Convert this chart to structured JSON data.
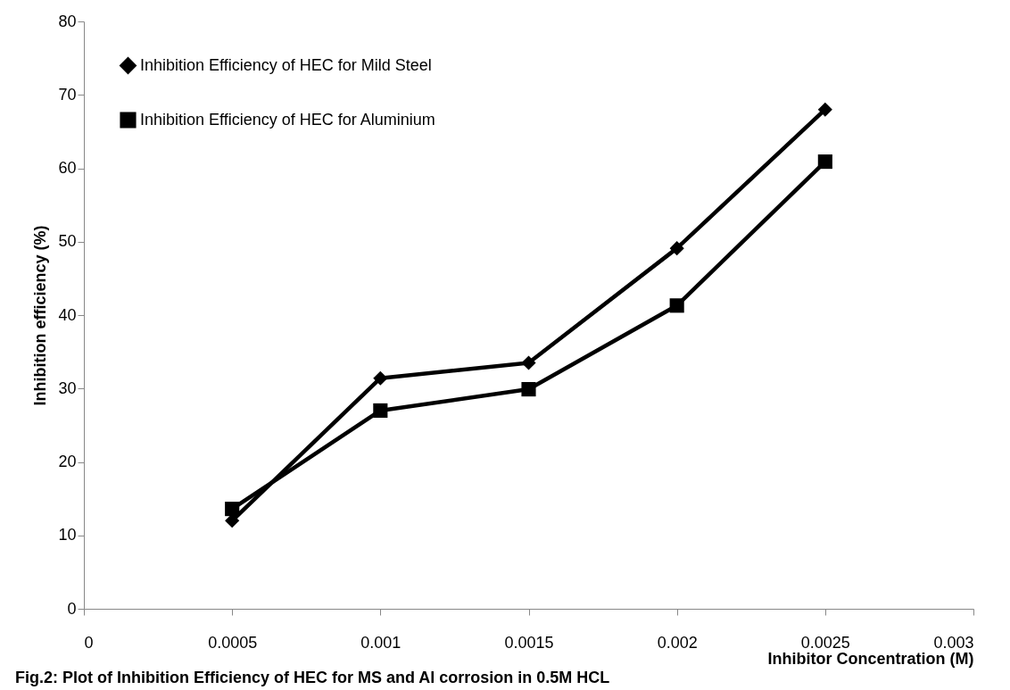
{
  "chart_data": {
    "type": "line",
    "xlabel": "Inhibitor Concentration (M)",
    "ylabel": "Inhibition efficiency (%)",
    "x": [
      0.0005,
      0.001,
      0.0015,
      0.002,
      0.0025
    ],
    "series": [
      {
        "name": "Inhibition Efficiency of HEC for Mild Steel",
        "color": "#000000",
        "marker": "diamond",
        "values": [
          12.0,
          31.4,
          33.5,
          49.1,
          68.0
        ]
      },
      {
        "name": "Inhibition Efficiency of HEC for Aluminium",
        "color": "#000000",
        "marker": "square",
        "values": [
          13.6,
          27.0,
          29.9,
          41.3,
          60.9
        ]
      }
    ],
    "xlim": [
      0,
      0.003
    ],
    "xticks": [
      0,
      0.0005,
      0.001,
      0.0015,
      0.002,
      0.0025,
      0.003
    ],
    "ylim": [
      0,
      80
    ],
    "yticks": [
      0,
      10,
      20,
      30,
      40,
      50,
      60,
      70,
      80
    ],
    "grid": false,
    "legend": "top left",
    "line_style": "solid",
    "annotations": [
      "Fig.2: Plot of Inhibition Efficiency of HEC for MS and Al corrosion in 0.5M HCL"
    ]
  }
}
